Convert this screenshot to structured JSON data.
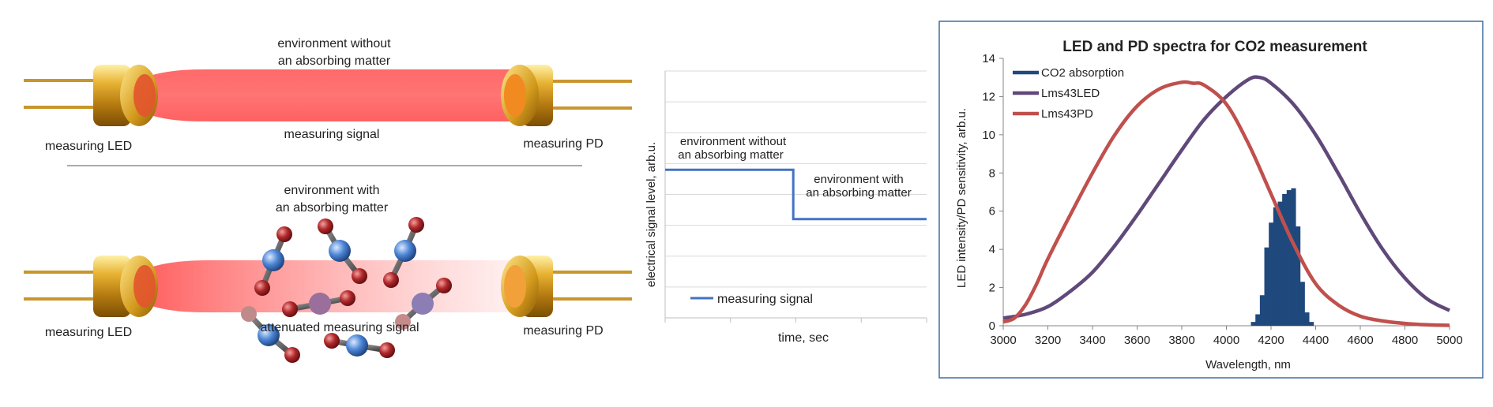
{
  "schematic": {
    "top": {
      "env_line1": "environment without",
      "env_line2": "an absorbing matter",
      "signal": "measuring signal",
      "led": "measuring LED",
      "pd": "measuring PD"
    },
    "bottom": {
      "env_line1": "environment with",
      "env_line2": "an absorbing matter",
      "signal": "attenuated measuring signal",
      "led": "measuring LED",
      "pd": "measuring PD"
    }
  },
  "chart_data": [
    {
      "type": "line",
      "title": "",
      "xlabel": "time, sec",
      "ylabel": "electrical signal level, arb.u.",
      "series": [
        {
          "name": "measuring signal",
          "color": "#4472C4",
          "x": [
            0,
            0.49,
            0.49,
            1.0
          ],
          "y": [
            0.6,
            0.6,
            0.4,
            0.4
          ]
        }
      ],
      "ylim": [
        0,
        1
      ],
      "grid": true,
      "legend": "bottom-left",
      "annotations": [
        {
          "line1": "environment without",
          "line2": "an absorbing matter"
        },
        {
          "line1": "environment with",
          "line2": "an absorbing matter"
        }
      ]
    },
    {
      "type": "line",
      "title": "LED and PD spectra for CO2 measurement",
      "xlabel": "Wavelength, nm",
      "ylabel": "LED intensity/PD sensitivity, arb.u.",
      "xlim": [
        3000,
        5000
      ],
      "ylim": [
        0,
        14
      ],
      "xticks": [
        3000,
        3200,
        3400,
        3600,
        3800,
        4000,
        4200,
        4400,
        4600,
        4800,
        5000
      ],
      "yticks": [
        0,
        2,
        4,
        6,
        8,
        10,
        12,
        14
      ],
      "legend": "top-left",
      "series": [
        {
          "name": "CO2 absorption",
          "kind": "bar",
          "color": "#1F497D",
          "x": [
            4120,
            4140,
            4160,
            4180,
            4200,
            4220,
            4240,
            4260,
            4280,
            4300,
            4320,
            4340,
            4360,
            4380
          ],
          "y": [
            0.2,
            0.6,
            1.6,
            4.1,
            5.4,
            6.2,
            6.5,
            6.9,
            7.1,
            7.2,
            5.2,
            2.3,
            0.7,
            0.2
          ]
        },
        {
          "name": "Lms43LED",
          "color": "#60497A",
          "x": [
            3000,
            3100,
            3200,
            3300,
            3400,
            3500,
            3600,
            3700,
            3800,
            3900,
            4000,
            4100,
            4150,
            4200,
            4300,
            4400,
            4500,
            4600,
            4700,
            4800,
            4900,
            5000
          ],
          "y": [
            0.4,
            0.6,
            1.0,
            1.8,
            2.8,
            4.2,
            5.8,
            7.5,
            9.2,
            10.8,
            12.0,
            12.9,
            13.0,
            12.7,
            11.6,
            10.0,
            8.0,
            5.9,
            4.0,
            2.5,
            1.4,
            0.8
          ]
        },
        {
          "name": "Lms43PD",
          "color": "#C0504D",
          "x": [
            3000,
            3050,
            3100,
            3150,
            3200,
            3300,
            3400,
            3500,
            3600,
            3700,
            3800,
            3850,
            3900,
            4000,
            4100,
            4200,
            4300,
            4400,
            4500,
            4600,
            4700,
            4800,
            4900,
            5000
          ],
          "y": [
            0.2,
            0.4,
            1.1,
            2.2,
            3.5,
            5.8,
            8.0,
            10.0,
            11.5,
            12.4,
            12.75,
            12.7,
            12.6,
            11.6,
            9.5,
            6.9,
            4.3,
            2.2,
            1.1,
            0.5,
            0.25,
            0.12,
            0.05,
            0.02
          ]
        }
      ]
    }
  ]
}
